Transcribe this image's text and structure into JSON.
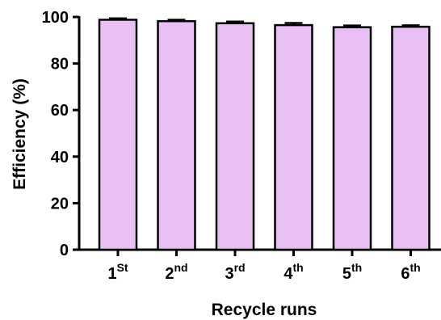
{
  "chart_data": {
    "type": "bar",
    "title": "",
    "xlabel": "Recycle runs",
    "ylabel": "Efficiency (%)",
    "ylim": [
      0,
      100
    ],
    "yticks": [
      0,
      20,
      40,
      60,
      80,
      100
    ],
    "categories": [
      {
        "base": "1",
        "sup": "St"
      },
      {
        "base": "2",
        "sup": "nd"
      },
      {
        "base": "3",
        "sup": "rd"
      },
      {
        "base": "4",
        "sup": "th"
      },
      {
        "base": "5",
        "sup": "th"
      },
      {
        "base": "6",
        "sup": "th"
      }
    ],
    "values": [
      98.8,
      98.2,
      97.3,
      96.5,
      95.6,
      95.8
    ],
    "errors": [
      0.6,
      0.6,
      0.7,
      0.9,
      0.7,
      0.6
    ],
    "bar_color": "#e8c0f3",
    "bar_edge_color": "#000000",
    "grid": false
  }
}
